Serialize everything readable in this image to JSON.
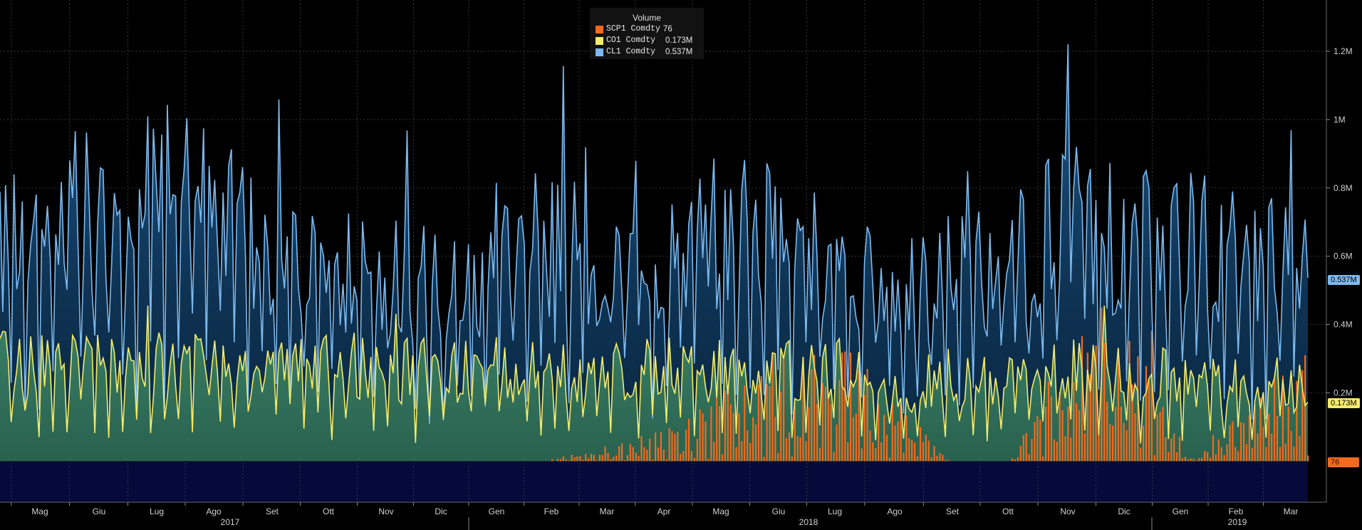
{
  "legend": {
    "title": "Volume",
    "items": [
      {
        "name": "SCP1 Comdty",
        "value": "76",
        "color": "#f26b1d"
      },
      {
        "name": "CO1 Comdty",
        "value": "0.173M",
        "color": "#f5ec6b"
      },
      {
        "name": "CL1 Comdty",
        "value": "0.537M",
        "color": "#7cb9ee"
      }
    ]
  },
  "last_value_tags": {
    "cl1": "0.537M",
    "co1": "0.173M",
    "scp1": "76"
  },
  "chart_data": {
    "type": "line",
    "title": "Volume",
    "ylim": [
      -120000,
      1350000
    ],
    "y_ticks": [
      {
        "value": 1200000,
        "label": "1.2M"
      },
      {
        "value": 1000000,
        "label": "1M"
      },
      {
        "value": 800000,
        "label": "0.8M"
      },
      {
        "value": 600000,
        "label": "0.6M"
      },
      {
        "value": 400000,
        "label": "0.4M"
      },
      {
        "value": 200000,
        "label": "0.2M"
      }
    ],
    "x_month_labels": [
      "Mag",
      "Giu",
      "Lug",
      "Ago",
      "Set",
      "Ott",
      "Nov",
      "Dic",
      "Gen",
      "Feb",
      "Mar",
      "Apr",
      "Mag",
      "Giu",
      "Lug",
      "Ago",
      "Set",
      "Ott",
      "Nov",
      "Dic",
      "Gen",
      "Feb",
      "Mar"
    ],
    "x_year_labels": [
      "2017",
      "2018",
      "2019"
    ],
    "grid": true,
    "legend_position": "top-center",
    "series": [
      {
        "name": "CL1 Comdty",
        "color": "#7cb9ee",
        "monthly_avg": [
          620000,
          720000,
          740000,
          790000,
          700000,
          560000,
          600000,
          520000,
          520000,
          640000,
          560000,
          600000,
          680000,
          660000,
          560000,
          480000,
          560000,
          580000,
          700000,
          640000,
          640000,
          600000,
          560000
        ],
        "last": 537000
      },
      {
        "name": "CO1 Comdty",
        "color": "#f5ec6b",
        "monthly_avg": [
          290000,
          300000,
          270000,
          290000,
          270000,
          280000,
          280000,
          270000,
          260000,
          290000,
          250000,
          270000,
          280000,
          270000,
          280000,
          190000,
          220000,
          250000,
          270000,
          260000,
          240000,
          220000,
          230000
        ],
        "last": 173000
      },
      {
        "name": "SCP1 Comdty",
        "color": "#f26b1d",
        "type": "bar",
        "monthly_avg": [
          0,
          0,
          0,
          0,
          0,
          0,
          0,
          0,
          0,
          0,
          20000,
          60000,
          120000,
          200000,
          230000,
          140000,
          2000,
          1000,
          230000,
          380000,
          2000,
          120000,
          200000
        ],
        "last": 76
      }
    ]
  }
}
